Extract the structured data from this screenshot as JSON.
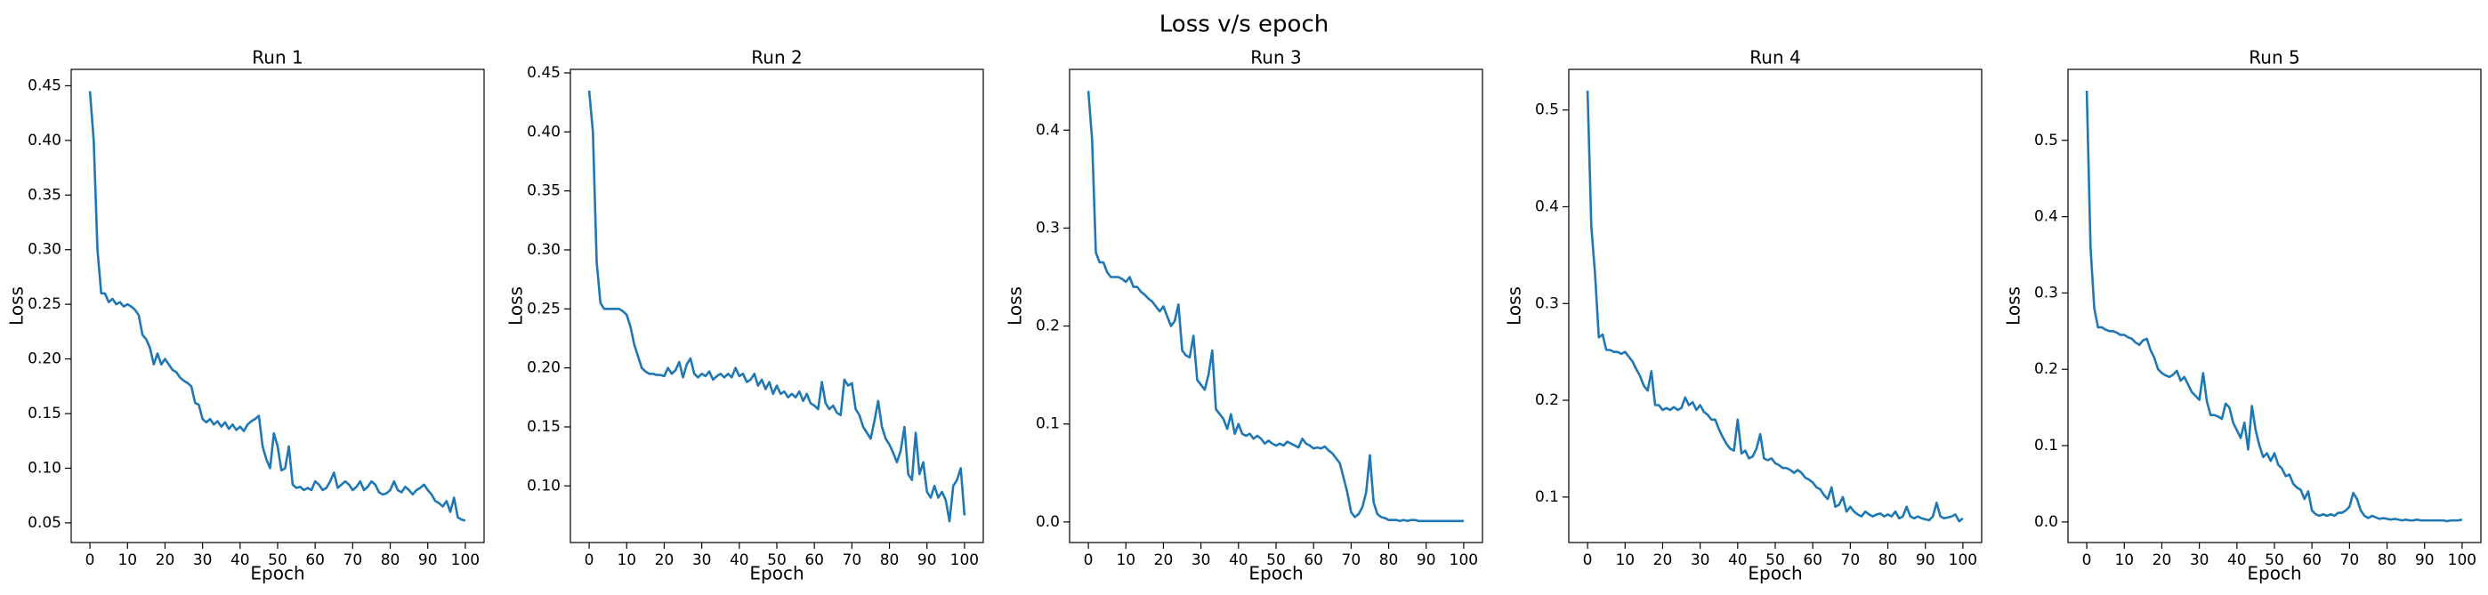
{
  "title": "Loss v/s epoch",
  "chart_data": [
    {
      "type": "line",
      "title": "Run 1",
      "xlabel": "Epoch",
      "ylabel": "Loss",
      "color": "#1f77b4",
      "x": [
        0,
        1,
        2,
        3,
        4,
        5,
        6,
        7,
        8,
        9,
        10,
        11,
        12,
        13,
        14,
        15,
        16,
        17,
        18,
        19,
        20,
        21,
        22,
        23,
        24,
        25,
        26,
        27,
        28,
        29,
        30,
        31,
        32,
        33,
        34,
        35,
        36,
        37,
        38,
        39,
        40,
        41,
        42,
        43,
        44,
        45,
        46,
        47,
        48,
        49,
        50,
        51,
        52,
        53,
        54,
        55,
        56,
        57,
        58,
        59,
        60,
        61,
        62,
        63,
        64,
        65,
        66,
        67,
        68,
        69,
        70,
        71,
        72,
        73,
        74,
        75,
        76,
        77,
        78,
        79,
        80,
        81,
        82,
        83,
        84,
        85,
        86,
        87,
        88,
        89,
        90,
        91,
        92,
        93,
        94,
        95,
        96,
        97,
        98,
        99,
        100
      ],
      "values": [
        0.445,
        0.4,
        0.3,
        0.26,
        0.26,
        0.252,
        0.255,
        0.25,
        0.252,
        0.248,
        0.25,
        0.248,
        0.245,
        0.24,
        0.222,
        0.218,
        0.21,
        0.195,
        0.205,
        0.195,
        0.2,
        0.195,
        0.19,
        0.188,
        0.183,
        0.18,
        0.178,
        0.175,
        0.16,
        0.158,
        0.145,
        0.142,
        0.145,
        0.14,
        0.143,
        0.138,
        0.142,
        0.136,
        0.14,
        0.135,
        0.138,
        0.134,
        0.14,
        0.143,
        0.145,
        0.148,
        0.12,
        0.108,
        0.1,
        0.132,
        0.12,
        0.098,
        0.1,
        0.12,
        0.085,
        0.082,
        0.083,
        0.08,
        0.082,
        0.08,
        0.088,
        0.085,
        0.08,
        0.082,
        0.088,
        0.096,
        0.082,
        0.085,
        0.088,
        0.085,
        0.08,
        0.083,
        0.088,
        0.08,
        0.083,
        0.088,
        0.085,
        0.078,
        0.076,
        0.077,
        0.08,
        0.088,
        0.08,
        0.078,
        0.083,
        0.08,
        0.076,
        0.08,
        0.082,
        0.085,
        0.08,
        0.076,
        0.07,
        0.068,
        0.065,
        0.07,
        0.06,
        0.073,
        0.055,
        0.053,
        0.052
      ],
      "xlim": [
        -5,
        105
      ],
      "xticks": [
        0,
        10,
        20,
        30,
        40,
        50,
        60,
        70,
        80,
        90,
        100
      ],
      "ylim": [
        0.032,
        0.465
      ],
      "yticks": [
        0.05,
        {
          "value": 0.1,
          "label": "0.10"
        },
        0.15,
        {
          "value": 0.2,
          "label": "0.20"
        },
        0.25,
        {
          "value": 0.3,
          "label": "0.30"
        },
        0.35,
        {
          "value": 0.4,
          "label": "0.40"
        },
        0.45
      ]
    },
    {
      "type": "line",
      "title": "Run 2",
      "xlabel": "Epoch",
      "ylabel": "Loss",
      "color": "#1f77b4",
      "x": [
        0,
        1,
        2,
        3,
        4,
        5,
        6,
        7,
        8,
        9,
        10,
        11,
        12,
        13,
        14,
        15,
        16,
        17,
        18,
        19,
        20,
        21,
        22,
        23,
        24,
        25,
        26,
        27,
        28,
        29,
        30,
        31,
        32,
        33,
        34,
        35,
        36,
        37,
        38,
        39,
        40,
        41,
        42,
        43,
        44,
        45,
        46,
        47,
        48,
        49,
        50,
        51,
        52,
        53,
        54,
        55,
        56,
        57,
        58,
        59,
        60,
        61,
        62,
        63,
        64,
        65,
        66,
        67,
        68,
        69,
        70,
        71,
        72,
        73,
        74,
        75,
        76,
        77,
        78,
        79,
        80,
        81,
        82,
        83,
        84,
        85,
        86,
        87,
        88,
        89,
        90,
        91,
        92,
        93,
        94,
        95,
        96,
        97,
        98,
        99,
        100
      ],
      "values": [
        0.435,
        0.4,
        0.29,
        0.255,
        0.25,
        0.25,
        0.25,
        0.25,
        0.25,
        0.248,
        0.245,
        0.235,
        0.22,
        0.21,
        0.2,
        0.197,
        0.195,
        0.195,
        0.194,
        0.194,
        0.193,
        0.2,
        0.195,
        0.198,
        0.205,
        0.192,
        0.203,
        0.208,
        0.195,
        0.192,
        0.195,
        0.193,
        0.197,
        0.19,
        0.193,
        0.195,
        0.192,
        0.195,
        0.192,
        0.2,
        0.193,
        0.195,
        0.188,
        0.19,
        0.195,
        0.185,
        0.19,
        0.182,
        0.188,
        0.178,
        0.185,
        0.178,
        0.18,
        0.175,
        0.178,
        0.175,
        0.18,
        0.172,
        0.178,
        0.17,
        0.168,
        0.165,
        0.188,
        0.17,
        0.165,
        0.168,
        0.162,
        0.16,
        0.19,
        0.185,
        0.187,
        0.165,
        0.16,
        0.15,
        0.145,
        0.14,
        0.155,
        0.172,
        0.15,
        0.14,
        0.135,
        0.128,
        0.12,
        0.13,
        0.15,
        0.11,
        0.105,
        0.145,
        0.11,
        0.12,
        0.095,
        0.09,
        0.1,
        0.09,
        0.095,
        0.088,
        0.07,
        0.1,
        0.105,
        0.115,
        0.075
      ],
      "xlim": [
        -5,
        105
      ],
      "xticks": [
        0,
        10,
        20,
        30,
        40,
        50,
        60,
        70,
        80,
        90,
        100
      ],
      "ylim": [
        0.052,
        0.453
      ],
      "yticks": [
        {
          "value": 0.1,
          "label": "0.10"
        },
        0.15,
        {
          "value": 0.2,
          "label": "0.20"
        },
        0.25,
        {
          "value": 0.3,
          "label": "0.30"
        },
        0.35,
        {
          "value": 0.4,
          "label": "0.40"
        },
        0.45
      ]
    },
    {
      "type": "line",
      "title": "Run 3",
      "xlabel": "Epoch",
      "ylabel": "Loss",
      "color": "#1f77b4",
      "x": [
        0,
        1,
        2,
        3,
        4,
        5,
        6,
        7,
        8,
        9,
        10,
        11,
        12,
        13,
        14,
        15,
        16,
        17,
        18,
        19,
        20,
        21,
        22,
        23,
        24,
        25,
        26,
        27,
        28,
        29,
        30,
        31,
        32,
        33,
        34,
        35,
        36,
        37,
        38,
        39,
        40,
        41,
        42,
        43,
        44,
        45,
        46,
        47,
        48,
        49,
        50,
        51,
        52,
        53,
        54,
        55,
        56,
        57,
        58,
        59,
        60,
        61,
        62,
        63,
        64,
        65,
        66,
        67,
        68,
        69,
        70,
        71,
        72,
        73,
        74,
        75,
        76,
        77,
        78,
        79,
        80,
        81,
        82,
        83,
        84,
        85,
        86,
        87,
        88,
        89,
        90,
        91,
        92,
        93,
        94,
        95,
        96,
        97,
        98,
        99,
        100
      ],
      "values": [
        0.44,
        0.39,
        0.275,
        0.265,
        0.265,
        0.255,
        0.25,
        0.25,
        0.25,
        0.248,
        0.245,
        0.25,
        0.24,
        0.24,
        0.235,
        0.232,
        0.228,
        0.225,
        0.22,
        0.215,
        0.22,
        0.21,
        0.2,
        0.205,
        0.222,
        0.175,
        0.17,
        0.168,
        0.19,
        0.145,
        0.14,
        0.135,
        0.15,
        0.175,
        0.115,
        0.11,
        0.105,
        0.095,
        0.11,
        0.09,
        0.1,
        0.09,
        0.088,
        0.09,
        0.085,
        0.088,
        0.085,
        0.08,
        0.083,
        0.08,
        0.078,
        0.08,
        0.078,
        0.082,
        0.08,
        0.078,
        0.076,
        0.085,
        0.08,
        0.078,
        0.075,
        0.076,
        0.075,
        0.077,
        0.073,
        0.07,
        0.065,
        0.06,
        0.045,
        0.03,
        0.01,
        0.005,
        0.008,
        0.015,
        0.03,
        0.068,
        0.02,
        0.008,
        0.005,
        0.004,
        0.002,
        0.002,
        0.002,
        0.001,
        0.002,
        0.001,
        0.002,
        0.002,
        0.001,
        0.001,
        0.001,
        0.001,
        0.001,
        0.001,
        0.001,
        0.001,
        0.001,
        0.001,
        0.001,
        0.001,
        0.001
      ],
      "xlim": [
        -5,
        105
      ],
      "xticks": [
        0,
        10,
        20,
        30,
        40,
        50,
        60,
        70,
        80,
        90,
        100
      ],
      "ylim": [
        -0.021,
        0.462
      ],
      "yticks": [
        {
          "value": 0,
          "label": "0.0"
        },
        0.1,
        0.2,
        0.3,
        0.4
      ]
    },
    {
      "type": "line",
      "title": "Run 4",
      "xlabel": "Epoch",
      "ylabel": "Loss",
      "color": "#1f77b4",
      "x": [
        0,
        1,
        2,
        3,
        4,
        5,
        6,
        7,
        8,
        9,
        10,
        11,
        12,
        13,
        14,
        15,
        16,
        17,
        18,
        19,
        20,
        21,
        22,
        23,
        24,
        25,
        26,
        27,
        28,
        29,
        30,
        31,
        32,
        33,
        34,
        35,
        36,
        37,
        38,
        39,
        40,
        41,
        42,
        43,
        44,
        45,
        46,
        47,
        48,
        49,
        50,
        51,
        52,
        53,
        54,
        55,
        56,
        57,
        58,
        59,
        60,
        61,
        62,
        63,
        64,
        65,
        66,
        67,
        68,
        69,
        70,
        71,
        72,
        73,
        74,
        75,
        76,
        77,
        78,
        79,
        80,
        81,
        82,
        83,
        84,
        85,
        86,
        87,
        88,
        89,
        90,
        91,
        92,
        93,
        94,
        95,
        96,
        97,
        98,
        99,
        100
      ],
      "values": [
        0.52,
        0.38,
        0.33,
        0.265,
        0.268,
        0.252,
        0.252,
        0.25,
        0.25,
        0.248,
        0.25,
        0.245,
        0.24,
        0.232,
        0.225,
        0.215,
        0.21,
        0.23,
        0.195,
        0.195,
        0.19,
        0.192,
        0.19,
        0.193,
        0.19,
        0.192,
        0.203,
        0.195,
        0.198,
        0.19,
        0.195,
        0.188,
        0.185,
        0.18,
        0.18,
        0.17,
        0.162,
        0.155,
        0.15,
        0.148,
        0.18,
        0.145,
        0.148,
        0.14,
        0.142,
        0.15,
        0.165,
        0.14,
        0.138,
        0.14,
        0.135,
        0.133,
        0.13,
        0.13,
        0.128,
        0.125,
        0.128,
        0.125,
        0.12,
        0.118,
        0.115,
        0.11,
        0.108,
        0.102,
        0.098,
        0.11,
        0.09,
        0.092,
        0.1,
        0.085,
        0.09,
        0.085,
        0.082,
        0.08,
        0.085,
        0.082,
        0.08,
        0.082,
        0.083,
        0.08,
        0.082,
        0.08,
        0.085,
        0.078,
        0.08,
        0.09,
        0.08,
        0.078,
        0.08,
        0.078,
        0.077,
        0.076,
        0.08,
        0.094,
        0.08,
        0.078,
        0.079,
        0.08,
        0.082,
        0.075,
        0.078
      ],
      "xlim": [
        -5,
        105
      ],
      "xticks": [
        0,
        10,
        20,
        30,
        40,
        50,
        60,
        70,
        80,
        90,
        100
      ],
      "ylim": [
        0.053,
        0.542
      ],
      "yticks": [
        0.1,
        0.2,
        0.3,
        0.4,
        0.5
      ]
    },
    {
      "type": "line",
      "title": "Run 5",
      "xlabel": "Epoch",
      "ylabel": "Loss",
      "color": "#1f77b4",
      "x": [
        0,
        1,
        2,
        3,
        4,
        5,
        6,
        7,
        8,
        9,
        10,
        11,
        12,
        13,
        14,
        15,
        16,
        17,
        18,
        19,
        20,
        21,
        22,
        23,
        24,
        25,
        26,
        27,
        28,
        29,
        30,
        31,
        32,
        33,
        34,
        35,
        36,
        37,
        38,
        39,
        40,
        41,
        42,
        43,
        44,
        45,
        46,
        47,
        48,
        49,
        50,
        51,
        52,
        53,
        54,
        55,
        56,
        57,
        58,
        59,
        60,
        61,
        62,
        63,
        64,
        65,
        66,
        67,
        68,
        69,
        70,
        71,
        72,
        73,
        74,
        75,
        76,
        77,
        78,
        79,
        80,
        81,
        82,
        83,
        84,
        85,
        86,
        87,
        88,
        89,
        90,
        91,
        92,
        93,
        94,
        95,
        96,
        97,
        98,
        99,
        100
      ],
      "values": [
        0.565,
        0.36,
        0.28,
        0.255,
        0.255,
        0.252,
        0.25,
        0.25,
        0.248,
        0.245,
        0.245,
        0.242,
        0.24,
        0.235,
        0.232,
        0.238,
        0.24,
        0.225,
        0.215,
        0.2,
        0.195,
        0.192,
        0.19,
        0.193,
        0.198,
        0.185,
        0.19,
        0.18,
        0.17,
        0.165,
        0.16,
        0.195,
        0.158,
        0.14,
        0.14,
        0.138,
        0.135,
        0.155,
        0.15,
        0.13,
        0.12,
        0.11,
        0.13,
        0.095,
        0.152,
        0.12,
        0.1,
        0.085,
        0.09,
        0.08,
        0.09,
        0.075,
        0.07,
        0.06,
        0.062,
        0.05,
        0.045,
        0.042,
        0.03,
        0.04,
        0.015,
        0.01,
        0.008,
        0.01,
        0.008,
        0.01,
        0.008,
        0.012,
        0.012,
        0.015,
        0.02,
        0.038,
        0.03,
        0.015,
        0.008,
        0.005,
        0.008,
        0.006,
        0.004,
        0.005,
        0.004,
        0.003,
        0.004,
        0.003,
        0.002,
        0.003,
        0.002,
        0.002,
        0.003,
        0.002,
        0.002,
        0.002,
        0.002,
        0.002,
        0.002,
        0.002,
        0.001,
        0.002,
        0.002,
        0.002,
        0.003
      ],
      "xlim": [
        -5,
        105
      ],
      "xticks": [
        0,
        10,
        20,
        30,
        40,
        50,
        60,
        70,
        80,
        90,
        100
      ],
      "ylim": [
        -0.027,
        0.593
      ],
      "yticks": [
        {
          "value": 0,
          "label": "0.0"
        },
        0.1,
        0.2,
        0.3,
        0.4,
        0.5
      ]
    }
  ]
}
